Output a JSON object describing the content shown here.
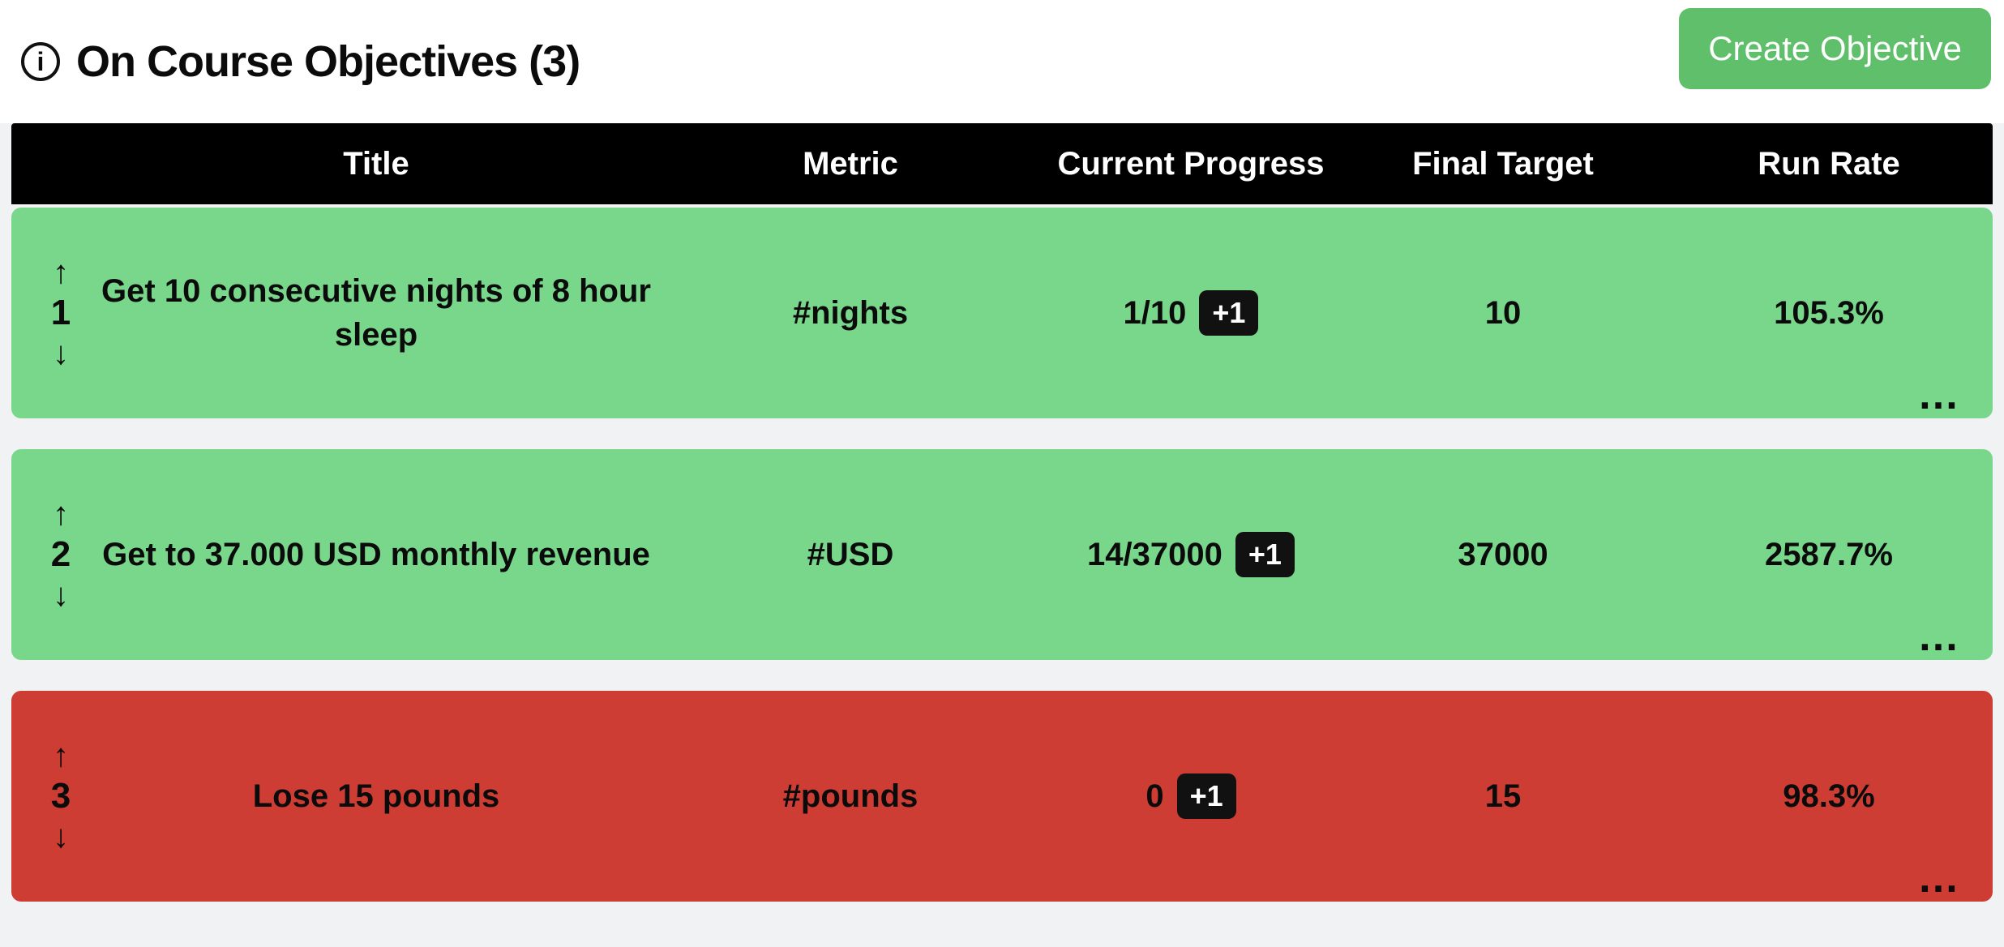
{
  "header": {
    "title": "On Course Objectives (3)",
    "create_button_label": "Create Objective"
  },
  "icons": {
    "info": "i",
    "move_up": "↑",
    "move_down": "↓",
    "more": "…"
  },
  "colors": {
    "on_track_row": "#78d78a",
    "off_track_row": "#cd3d34",
    "create_button": "#5fbf6b",
    "table_header_bg": "#000000",
    "page_background": "#f0f2f4",
    "badge_bg": "#111111"
  },
  "table": {
    "columns": [
      "Title",
      "Metric",
      "Current Progress",
      "Final Target",
      "Run Rate"
    ],
    "rows": [
      {
        "index": "1",
        "title": "Get 10 consecutive nights of 8 hour sleep",
        "metric": "#nights",
        "progress": "1/10",
        "increment_label": "+1",
        "final_target": "10",
        "run_rate": "105.3%",
        "status": "on-track"
      },
      {
        "index": "2",
        "title": "Get to 37.000 USD monthly revenue",
        "metric": "#USD",
        "progress": "14/37000",
        "increment_label": "+1",
        "final_target": "37000",
        "run_rate": "2587.7%",
        "status": "on-track"
      },
      {
        "index": "3",
        "title": "Lose 15 pounds",
        "metric": "#pounds",
        "progress": "0",
        "increment_label": "+1",
        "final_target": "15",
        "run_rate": "98.3%",
        "status": "off-track"
      }
    ]
  }
}
